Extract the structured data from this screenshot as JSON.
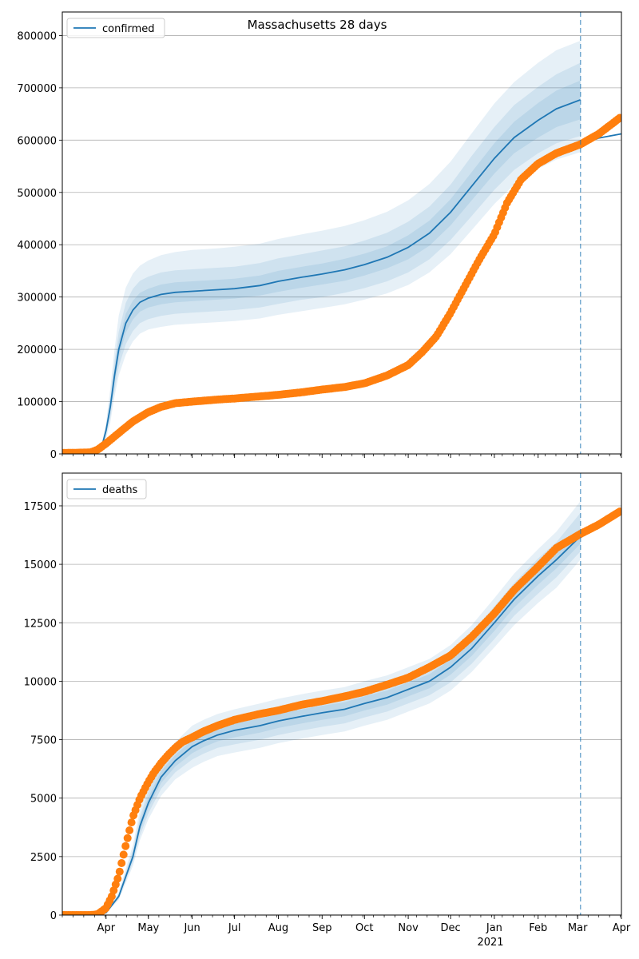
{
  "figure": {
    "title": "Massachusetts 28 days"
  },
  "colors": {
    "model": "#1f77b4",
    "observed": "#ff7f0e",
    "grid": "#b0b0b0",
    "band": "#1f77b4"
  },
  "x_axis": {
    "month_labels": [
      "Apr",
      "May",
      "Jun",
      "Jul",
      "Aug",
      "Sep",
      "Oct",
      "Nov",
      "Dec",
      "Jan",
      "Feb",
      "Mar",
      "Apr"
    ],
    "month_starts_day": [
      31,
      61,
      92,
      122,
      153,
      184,
      214,
      245,
      275,
      306,
      337,
      365,
      396
    ],
    "year_label": "2021",
    "domain_days": [
      0,
      396
    ],
    "forecast_day": 367
  },
  "chart_data": [
    {
      "type": "line",
      "title": "Massachusetts 28 days",
      "legend": "confirmed",
      "legend_position": "top-left",
      "ylim": [
        0,
        845000
      ],
      "yticks": [
        0,
        100000,
        200000,
        300000,
        400000,
        500000,
        600000,
        700000,
        800000
      ],
      "ytick_labels": [
        "0",
        "100000",
        "200000",
        "300000",
        "400000",
        "500000",
        "600000",
        "700000",
        "800000"
      ],
      "model": {
        "x_days": [
          0,
          20,
          25,
          28,
          31,
          34,
          37,
          40,
          45,
          50,
          55,
          61,
          70,
          80,
          92,
          110,
          122,
          140,
          153,
          170,
          184,
          200,
          214,
          230,
          245,
          260,
          275,
          290,
          306,
          320,
          337,
          350,
          367
        ],
        "y": [
          0,
          0,
          3000,
          15000,
          45000,
          90000,
          150000,
          200000,
          250000,
          275000,
          290000,
          298000,
          305000,
          309000,
          311000,
          314000,
          316000,
          322000,
          330000,
          338000,
          344000,
          352000,
          362000,
          376000,
          395000,
          422000,
          462000,
          512000,
          565000,
          605000,
          638000,
          660000,
          677000
        ]
      },
      "bands": [
        {
          "level": "outer",
          "lower": [
            0,
            0,
            2000,
            10000,
            30000,
            60000,
            110000,
            150000,
            190000,
            215000,
            230000,
            238000,
            243000,
            247000,
            249000,
            252000,
            254000,
            259000,
            266000,
            273000,
            279000,
            286000,
            295000,
            307000,
            323000,
            347000,
            382000,
            428000,
            478000,
            515000,
            545000,
            563000,
            577000
          ],
          "upper": [
            0,
            0,
            4000,
            20000,
            60000,
            125000,
            200000,
            265000,
            318000,
            345000,
            360000,
            370000,
            380000,
            386000,
            390000,
            393000,
            396000,
            402000,
            411000,
            420000,
            427000,
            436000,
            447000,
            463000,
            485000,
            516000,
            559000,
            613000,
            670000,
            711000,
            748000,
            772000,
            790000
          ]
        },
        {
          "level": "middle",
          "lower": [
            0,
            0,
            2300,
            11500,
            35000,
            70000,
            122000,
            167000,
            210000,
            235000,
            250000,
            258000,
            264000,
            268000,
            270000,
            273000,
            275000,
            280000,
            287000,
            295000,
            300000,
            308000,
            317000,
            330000,
            347000,
            372000,
            409000,
            455000,
            505000,
            543000,
            575000,
            594000,
            608000
          ],
          "upper": [
            0,
            0,
            3700,
            18500,
            55000,
            110000,
            178000,
            234000,
            289000,
            316000,
            331000,
            339000,
            347000,
            351000,
            353000,
            356000,
            358000,
            365000,
            374000,
            382000,
            389000,
            397000,
            408000,
            423000,
            444000,
            473000,
            515000,
            570000,
            625000,
            667000,
            702000,
            726000,
            748000
          ]
        },
        {
          "level": "inner",
          "lower": [
            0,
            0,
            2600,
            13000,
            40000,
            80000,
            135000,
            184000,
            232000,
            257000,
            272000,
            280000,
            286000,
            290000,
            292000,
            295000,
            297000,
            303000,
            310000,
            318000,
            324000,
            331000,
            341000,
            355000,
            372000,
            398000,
            437000,
            485000,
            536000,
            575000,
            605000,
            625000,
            640000
          ],
          "upper": [
            0,
            0,
            3400,
            17000,
            50000,
            100000,
            165000,
            216000,
            268000,
            293000,
            308000,
            316000,
            324000,
            328000,
            330000,
            333000,
            335000,
            341000,
            350000,
            358000,
            364000,
            373000,
            383000,
            397000,
            418000,
            446000,
            487000,
            539000,
            594000,
            635000,
            671000,
            695000,
            714000
          ]
        }
      ],
      "projection": {
        "x_days": [
          367,
          380,
          396
        ],
        "y": [
          590000,
          604000,
          612000
        ]
      },
      "observed": {
        "x_days": [
          0,
          10,
          20,
          25,
          31,
          40,
          50,
          61,
          70,
          80,
          92,
          110,
          122,
          140,
          153,
          170,
          184,
          200,
          214,
          230,
          245,
          255,
          265,
          275,
          285,
          295,
          306,
          315,
          325,
          337,
          350,
          367,
          380,
          396
        ],
        "y": [
          2000,
          2200,
          3000,
          8000,
          20000,
          40000,
          62000,
          80000,
          90000,
          97000,
          100000,
          104000,
          106000,
          110000,
          113000,
          118000,
          123000,
          128000,
          135000,
          150000,
          170000,
          195000,
          225000,
          270000,
          320000,
          370000,
          420000,
          480000,
          525000,
          555000,
          575000,
          592000,
          612000,
          645000
        ]
      }
    },
    {
      "type": "line",
      "legend": "deaths",
      "legend_position": "top-left",
      "ylim": [
        0,
        18900
      ],
      "yticks": [
        0,
        2500,
        5000,
        7500,
        10000,
        12500,
        15000,
        17500
      ],
      "ytick_labels": [
        "0",
        "2500",
        "5000",
        "7500",
        "10000",
        "12500",
        "15000",
        "17500"
      ],
      "model": {
        "x_days": [
          0,
          25,
          31,
          40,
          50,
          55,
          61,
          70,
          80,
          92,
          100,
          110,
          122,
          140,
          153,
          170,
          184,
          200,
          214,
          230,
          245,
          260,
          275,
          290,
          306,
          320,
          337,
          350,
          367
        ],
        "y": [
          0,
          0,
          100,
          800,
          2500,
          3800,
          4800,
          5900,
          6600,
          7200,
          7450,
          7700,
          7900,
          8100,
          8300,
          8500,
          8650,
          8800,
          9050,
          9300,
          9650,
          10000,
          10600,
          11400,
          12500,
          13500,
          14500,
          15200,
          16200
        ]
      },
      "bands": [
        {
          "level": "outer",
          "lower": [
            0,
            0,
            80,
            650,
            2100,
            3200,
            4100,
            5100,
            5800,
            6300,
            6550,
            6800,
            6950,
            7150,
            7350,
            7550,
            7700,
            7850,
            8100,
            8350,
            8700,
            9050,
            9600,
            10400,
            11450,
            12400,
            13350,
            14000,
            15200
          ],
          "upper": [
            0,
            0,
            120,
            1000,
            3000,
            4500,
            5600,
            6700,
            7400,
            8100,
            8350,
            8600,
            8800,
            9050,
            9250,
            9450,
            9600,
            9750,
            10000,
            10250,
            10600,
            10950,
            11550,
            12400,
            13550,
            14600,
            15650,
            16400,
            17700
          ]
        },
        {
          "level": "middle",
          "lower": [
            0,
            0,
            88,
            700,
            2250,
            3400,
            4350,
            5400,
            6100,
            6650,
            6900,
            7150,
            7300,
            7500,
            7700,
            7900,
            8050,
            8200,
            8450,
            8700,
            9050,
            9400,
            9950,
            10750,
            11800,
            12800,
            13750,
            14450,
            15550
          ],
          "upper": [
            0,
            0,
            112,
            900,
            2800,
            4200,
            5300,
            6400,
            7100,
            7750,
            8000,
            8250,
            8450,
            8700,
            8900,
            9100,
            9250,
            9400,
            9650,
            9900,
            10250,
            10600,
            11250,
            12050,
            13200,
            14200,
            15250,
            15950,
            17200
          ]
        },
        {
          "level": "inner",
          "lower": [
            0,
            0,
            94,
            750,
            2380,
            3600,
            4580,
            5650,
            6350,
            6920,
            7180,
            7430,
            7600,
            7800,
            8000,
            8200,
            8350,
            8500,
            8750,
            9000,
            9350,
            9700,
            10280,
            11080,
            12150,
            13150,
            14130,
            14830,
            15880
          ],
          "upper": [
            0,
            0,
            106,
            850,
            2650,
            4000,
            5050,
            6150,
            6850,
            7480,
            7720,
            7970,
            8200,
            8400,
            8600,
            8800,
            8950,
            9100,
            9350,
            9600,
            9950,
            10300,
            10920,
            11720,
            12850,
            13850,
            14870,
            15570,
            16520
          ]
        }
      ],
      "projection": {
        "x_days": [
          367,
          380,
          396
        ],
        "y": [
          16200,
          16700,
          17300
        ]
      },
      "observed": {
        "x_days": [
          0,
          20,
          25,
          31,
          35,
          40,
          45,
          50,
          55,
          61,
          65,
          70,
          75,
          80,
          85,
          92,
          100,
          110,
          122,
          140,
          153,
          170,
          184,
          200,
          214,
          230,
          245,
          260,
          275,
          290,
          306,
          320,
          337,
          350,
          367,
          380,
          396
        ],
        "y": [
          0,
          0,
          30,
          300,
          800,
          1700,
          3000,
          4200,
          5000,
          5700,
          6100,
          6500,
          6850,
          7150,
          7400,
          7600,
          7850,
          8100,
          8350,
          8600,
          8750,
          9000,
          9150,
          9350,
          9550,
          9850,
          10150,
          10600,
          11100,
          11900,
          12900,
          13900,
          14900,
          15700,
          16300,
          16700,
          17300
        ]
      }
    }
  ]
}
